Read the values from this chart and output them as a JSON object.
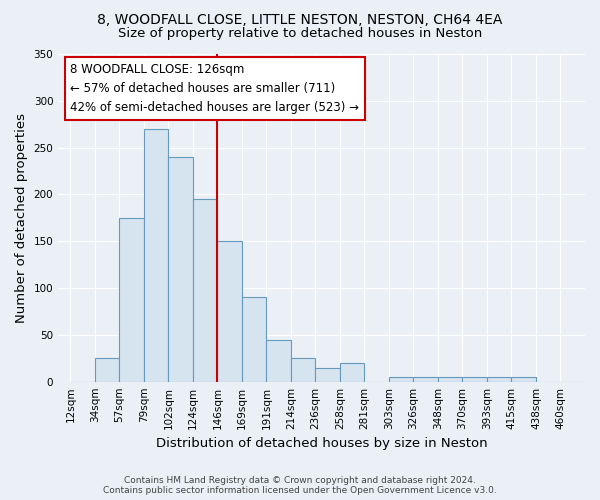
{
  "title1": "8, WOODFALL CLOSE, LITTLE NESTON, NESTON, CH64 4EA",
  "title2": "Size of property relative to detached houses in Neston",
  "xlabel": "Distribution of detached houses by size in Neston",
  "ylabel": "Number of detached properties",
  "footnote": "Contains HM Land Registry data © Crown copyright and database right 2024.\nContains public sector information licensed under the Open Government Licence v3.0.",
  "categories": [
    "12sqm",
    "34sqm",
    "57sqm",
    "79sqm",
    "102sqm",
    "124sqm",
    "146sqm",
    "169sqm",
    "191sqm",
    "214sqm",
    "236sqm",
    "258sqm",
    "281sqm",
    "303sqm",
    "326sqm",
    "348sqm",
    "370sqm",
    "393sqm",
    "415sqm",
    "438sqm",
    "460sqm"
  ],
  "values": [
    0,
    25,
    175,
    270,
    240,
    195,
    150,
    90,
    45,
    25,
    15,
    20,
    0,
    5,
    5,
    5,
    5,
    5,
    5,
    0,
    0
  ],
  "bar_color": "#d6e4f0",
  "bar_edge_color": "#6699bb",
  "bar_width": 1.0,
  "vline_color": "#cc0000",
  "vline_index": 6,
  "annotation_line1": "8 WOODFALL CLOSE: 126sqm",
  "annotation_line2": "← 57% of detached houses are smaller (711)",
  "annotation_line3": "42% of semi-detached houses are larger (523) →",
  "annotation_box_color": "#ffffff",
  "annotation_box_edge_color": "#cc0000",
  "ylim": [
    0,
    350
  ],
  "yticks": [
    0,
    50,
    100,
    150,
    200,
    250,
    300,
    350
  ],
  "background_color": "#eaf0f6",
  "grid_color": "#ffffff",
  "title_fontsize": 10,
  "subtitle_fontsize": 9.5,
  "axis_label_fontsize": 9.5,
  "tick_fontsize": 7.5,
  "annotation_fontsize": 8.5
}
